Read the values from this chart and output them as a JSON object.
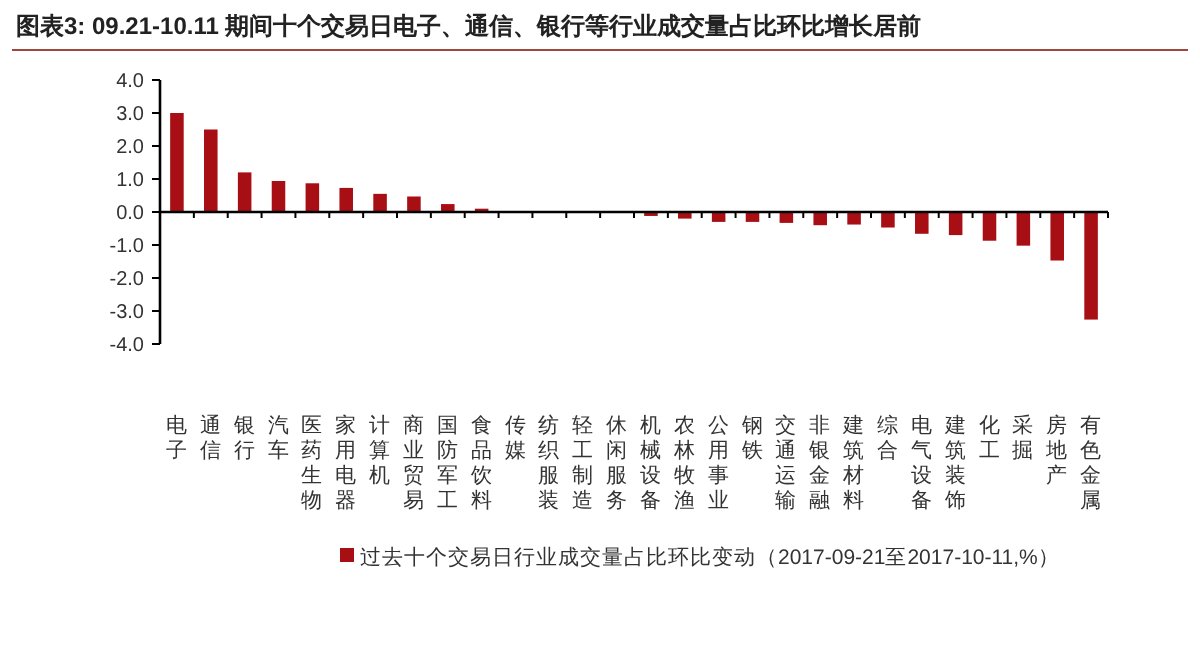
{
  "chart_data": {
    "type": "bar",
    "title": "图表3:   09.21-10.11 期间十个交易日电子、通信、银行等行业成交量占比环比增长居前",
    "categories": [
      "电子",
      "通信",
      "银行",
      "汽车",
      "医药生物",
      "家用电器",
      "计算机",
      "商业贸易",
      "国防军工",
      "食品饮料",
      "传媒",
      "纺织服装",
      "轻工制造",
      "休闲服务",
      "机械设备",
      "农林牧渔",
      "公用事业",
      "钢铁",
      "交通运输",
      "非银金融",
      "建筑材料",
      "综合",
      "电气设备",
      "建筑装饰",
      "化工",
      "采掘",
      "房地产",
      "有色金属"
    ],
    "series": [
      {
        "name": "过去十个交易日行业成交量占比环比变动（2017-09-21至2017-10-11,%）",
        "color": "#a80f14",
        "values": [
          3.0,
          2.5,
          1.2,
          0.94,
          0.87,
          0.73,
          0.55,
          0.47,
          0.24,
          0.1,
          0.0,
          0.0,
          0.0,
          0.0,
          -0.12,
          -0.2,
          -0.3,
          -0.3,
          -0.33,
          -0.4,
          -0.38,
          -0.47,
          -0.66,
          -0.7,
          -0.87,
          -1.02,
          -1.47,
          -3.26
        ]
      }
    ],
    "ylim": [
      -4,
      4
    ],
    "yticks": [
      {
        "value": -4,
        "label": "-4.0"
      },
      {
        "value": -3,
        "label": "-3.0"
      },
      {
        "value": -2,
        "label": "-2.0"
      },
      {
        "value": -1,
        "label": "-1.0"
      },
      {
        "value": 0,
        "label": "0.0"
      },
      {
        "value": 1,
        "label": "1.0"
      },
      {
        "value": 2,
        "label": "2.0"
      },
      {
        "value": 3,
        "label": "3.0"
      },
      {
        "value": 4,
        "label": "4.0"
      }
    ],
    "legend": "bottom"
  }
}
